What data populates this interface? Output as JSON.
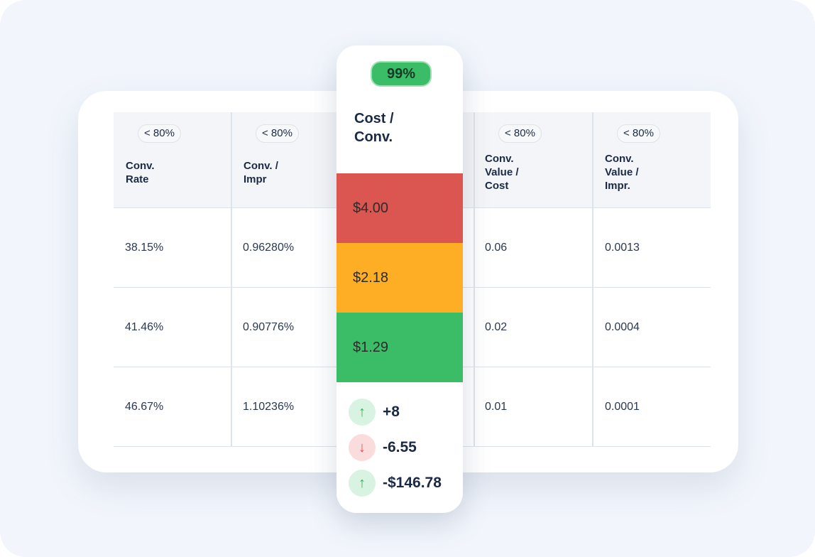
{
  "columns": [
    {
      "badge": "< 80%",
      "title": "Conv.\nRate",
      "values": [
        "38.15%",
        "41.46%",
        "46.67%"
      ]
    },
    {
      "badge": "< 80%",
      "title": "Conv. /\nImpr",
      "values": [
        "0.96280%",
        "0.90776%",
        "1.10236%"
      ]
    },
    {
      "badge": "< 80%",
      "title": "Conv.\nValue /\nCost",
      "values": [
        "0.06",
        "0.02",
        "0.01"
      ]
    },
    {
      "badge": "< 80%",
      "title": "Conv.\nValue /\nImpr.",
      "values": [
        "0.0013",
        "0.0004",
        "0.0001"
      ]
    }
  ],
  "highlight": {
    "badge": "99%",
    "title": "Cost /\nConv.",
    "values": [
      {
        "text": "$4.00",
        "color": "#dc5651"
      },
      {
        "text": "$2.18",
        "color": "#fdae24"
      },
      {
        "text": "$1.29",
        "color": "#3bbd68"
      }
    ],
    "deltas": [
      {
        "text": "+8",
        "dir": "up",
        "icon": "arrow-up-icon"
      },
      {
        "text": "-6.55",
        "dir": "down",
        "icon": "arrow-down-icon"
      },
      {
        "text": "-$146.78",
        "dir": "up",
        "icon": "arrow-up-icon"
      }
    ]
  }
}
